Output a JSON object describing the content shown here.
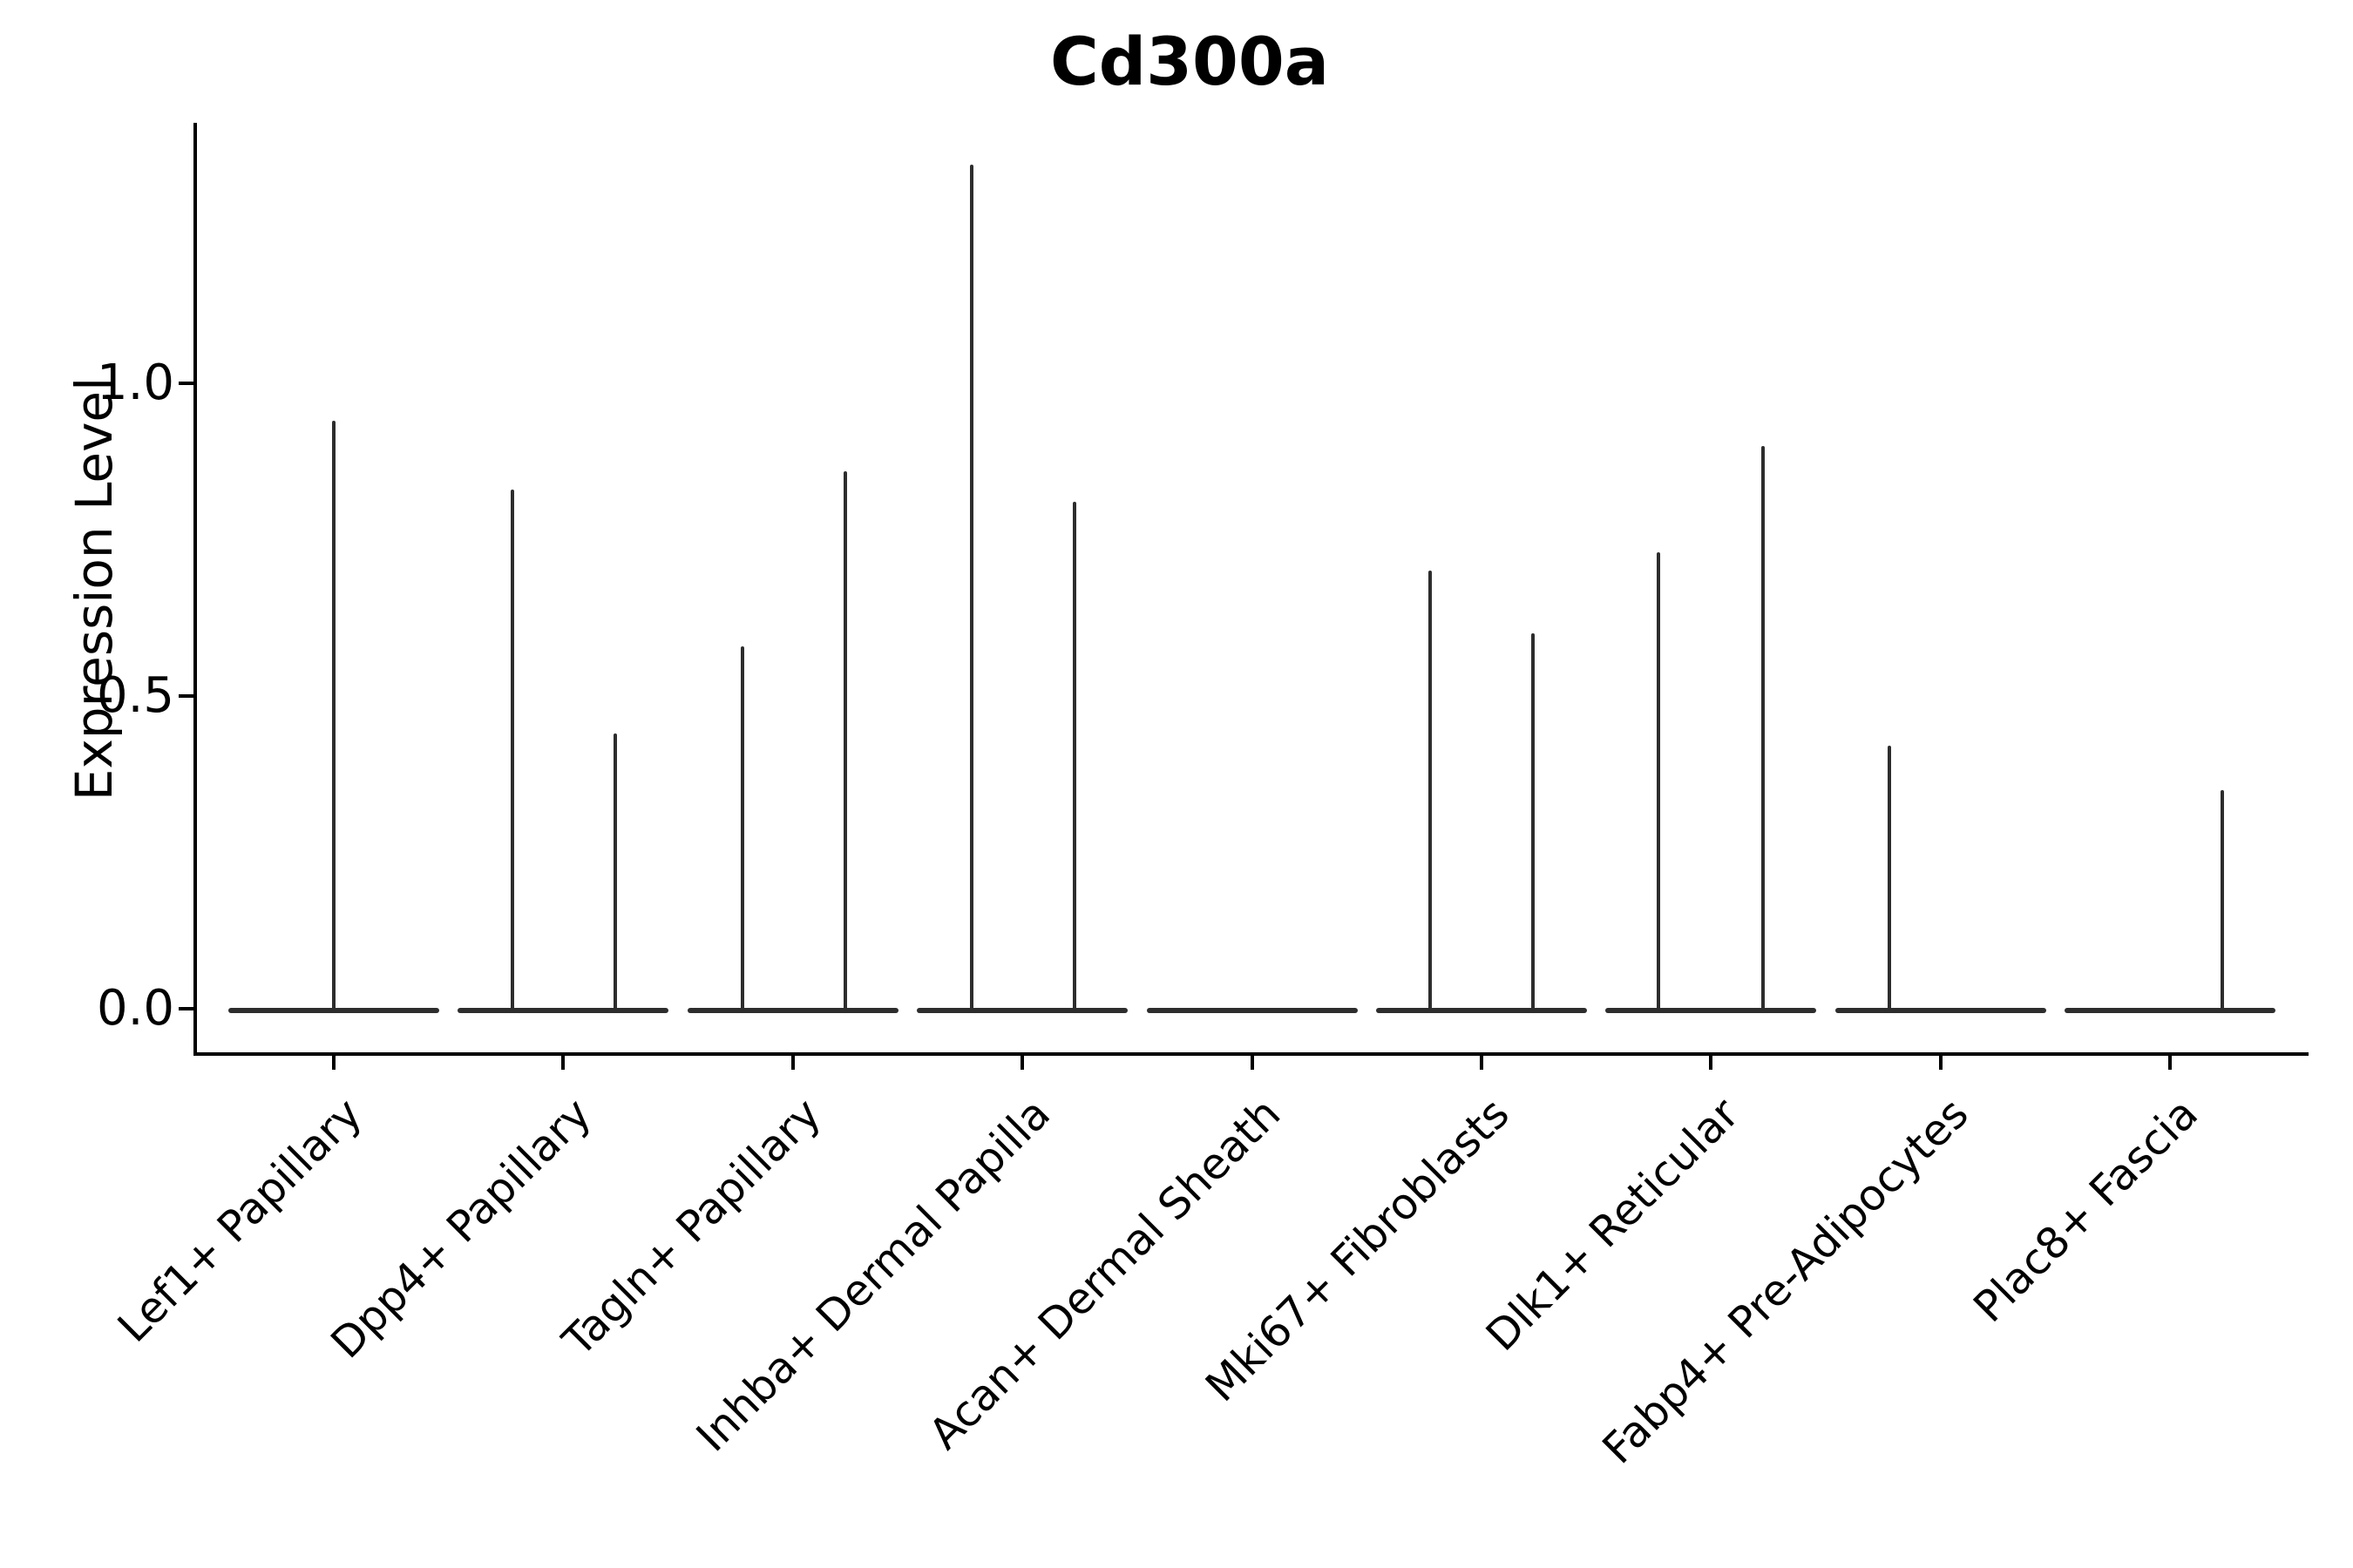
{
  "chart_data": {
    "type": "violin",
    "title": "Cd300a",
    "ylabel": "Expression Level",
    "xlabel": "",
    "grid": false,
    "legend_position": "none",
    "background_color": "#ffffff",
    "violin_color": "#2d2d2d",
    "axis_color": "#000000",
    "text_color": "#000000",
    "ylim": [
      0.0,
      1.42
    ],
    "yticks": [
      {
        "label": "0.0",
        "value": 0.0
      },
      {
        "label": "0.5",
        "value": 0.5
      },
      {
        "label": "1.0",
        "value": 1.0
      }
    ],
    "categories": [
      {
        "label": "Lef1+ Papillary",
        "spikes": [
          {
            "offset": 0,
            "max": 0.94
          }
        ]
      },
      {
        "label": "Dpp4+ Papillary",
        "spikes": [
          {
            "offset": -58,
            "max": 0.83
          },
          {
            "offset": 60,
            "max": 0.44
          }
        ]
      },
      {
        "label": "Tagln+ Papillary",
        "spikes": [
          {
            "offset": -58,
            "max": 0.58
          },
          {
            "offset": 60,
            "max": 0.86
          }
        ]
      },
      {
        "label": "Inhba+ Dermal Papilla",
        "spikes": [
          {
            "offset": -58,
            "max": 1.35
          },
          {
            "offset": 60,
            "max": 0.81
          }
        ]
      },
      {
        "label": "Acan+ Dermal Sheath",
        "spikes": []
      },
      {
        "label": "Mki67+ Fibroblasts",
        "spikes": [
          {
            "offset": -59,
            "max": 0.7
          },
          {
            "offset": 59,
            "max": 0.6
          }
        ]
      },
      {
        "label": "Dlk1+ Reticular",
        "spikes": [
          {
            "offset": -60,
            "max": 0.73
          },
          {
            "offset": 60,
            "max": 0.9
          }
        ]
      },
      {
        "label": "Fabp4+ Pre-Adipocytes",
        "spikes": [
          {
            "offset": -59,
            "max": 0.42
          }
        ]
      },
      {
        "label": "Plac8+ Fascia",
        "spikes": [
          {
            "offset": 60,
            "max": 0.35
          }
        ]
      }
    ]
  }
}
